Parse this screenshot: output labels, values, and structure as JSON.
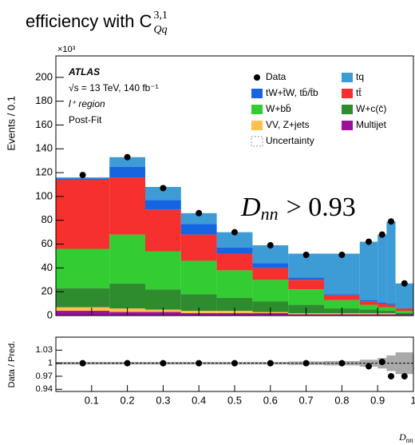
{
  "title": "efficiency with C",
  "title_sup": "3,1",
  "title_sub": "Qq",
  "chart_data": {
    "type": "stacked_histogram",
    "ylabel": "Events / 0.1",
    "yscale_label": "×10³",
    "xlabel": "D",
    "xlabel_sub": "nn",
    "annotations": [
      "ATLAS",
      "√s = 13 TeV, 140 fb⁻¹",
      "l⁺ region",
      "Post-Fit"
    ],
    "cut": {
      "text": "D",
      "sub": "nn",
      "rest": "> 0.93"
    },
    "bins": [
      0,
      0.15,
      0.25,
      0.35,
      0.45,
      0.55,
      0.65,
      0.75,
      0.85,
      0.9,
      0.925,
      0.95,
      1.0
    ],
    "xlim": [
      0,
      1
    ],
    "xticks": [
      0.1,
      0.2,
      0.3,
      0.4,
      0.5,
      0.6,
      0.7,
      0.8,
      0.9,
      1
    ],
    "ylim": [
      0,
      218
    ],
    "yticks": [
      0,
      20,
      40,
      60,
      80,
      100,
      120,
      140,
      160,
      180,
      200
    ],
    "series": [
      {
        "name": "Multijet",
        "color": "#9c0f9c",
        "values": [
          4,
          3,
          3,
          2,
          2,
          2,
          1,
          1,
          1,
          1,
          1,
          1
        ]
      },
      {
        "name": "VV, Z+jets",
        "color": "#ffc04d",
        "values": [
          3,
          3,
          2,
          2,
          2,
          1,
          1,
          1,
          1,
          1,
          1,
          0
        ]
      },
      {
        "name": "W+c(c̄)",
        "color": "#2e8b2e",
        "values": [
          16,
          21,
          17,
          14,
          11,
          9,
          7,
          4,
          3,
          2,
          2,
          1
        ]
      },
      {
        "name": "W+bb̄",
        "color": "#33cc33",
        "values": [
          33,
          41,
          32,
          28,
          23,
          18,
          13,
          7,
          4,
          3,
          3,
          2
        ]
      },
      {
        "name": "tt̄",
        "color": "#f5302e",
        "values": [
          58,
          48,
          35,
          22,
          14,
          10,
          8,
          4,
          3,
          3,
          2,
          2
        ]
      },
      {
        "name": "tW+t̄W, tb̄/t̄b",
        "color": "#1565e0",
        "values": [
          1,
          9,
          8,
          9,
          5,
          4,
          2,
          1,
          1,
          1,
          1,
          0
        ]
      },
      {
        "name": "tq",
        "color": "#3d9bd6",
        "values": [
          1,
          8,
          11,
          9,
          13,
          15,
          20,
          34,
          49,
          57,
          69,
          21
        ]
      }
    ],
    "data": {
      "name": "Data",
      "values": [
        118,
        133,
        107,
        86,
        70,
        59,
        51,
        51,
        62,
        68,
        79,
        27
      ]
    },
    "uncertainty_name": "Uncertainty",
    "ratio": {
      "ylabel": "Data / Pred.",
      "values": [
        1,
        1,
        1,
        1,
        1,
        1,
        1,
        1,
        0.993,
        1.003,
        0.97,
        0.97
      ],
      "uncertainty": [
        0.003,
        0.003,
        0.003,
        0.003,
        0.003,
        0.003,
        0.004,
        0.005,
        0.008,
        0.012,
        0.018,
        0.025
      ],
      "ylim": [
        0.935,
        1.06
      ],
      "yticks": [
        0.94,
        0.97,
        1,
        1.03
      ]
    }
  }
}
